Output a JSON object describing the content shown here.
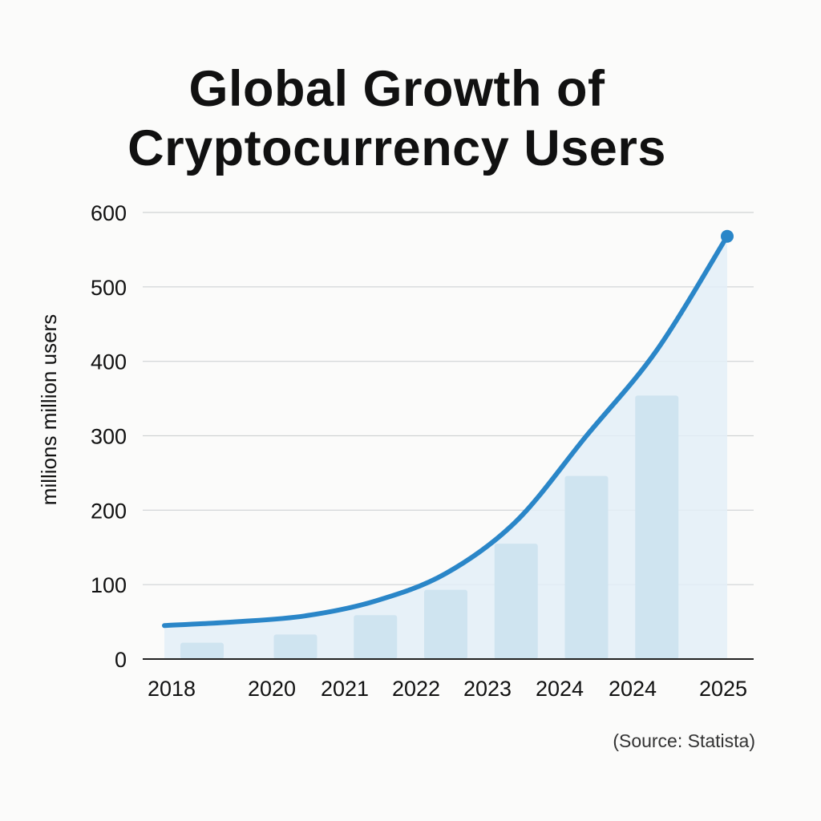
{
  "chart_data": {
    "type": "line",
    "title": "Global Growth of Cryptocurrency Users",
    "title_lines": [
      "Global Growth of",
      "Cryptocurrency Users"
    ],
    "ylabel": "millions million users",
    "xlabel": "",
    "categories": [
      "2018",
      "",
      "2020",
      "2021",
      "2022",
      "2023",
      "2024",
      "2024",
      "2025"
    ],
    "ylim": [
      0,
      600
    ],
    "yticks": [
      0,
      100,
      200,
      300,
      400,
      500,
      600
    ],
    "grid": true,
    "legend": "none",
    "series": [
      {
        "kind": "line-area",
        "values": [
          45,
          50,
          58,
          78,
          115,
          185,
          300,
          415,
          568
        ],
        "color": "#2a86c8",
        "fill": "#e3eef7"
      },
      {
        "kind": "bar",
        "values": [
          null,
          22,
          33,
          59,
          93,
          155,
          246,
          354,
          null
        ],
        "color": "#cfe4f0"
      }
    ],
    "source": "(Source: Statista)"
  }
}
